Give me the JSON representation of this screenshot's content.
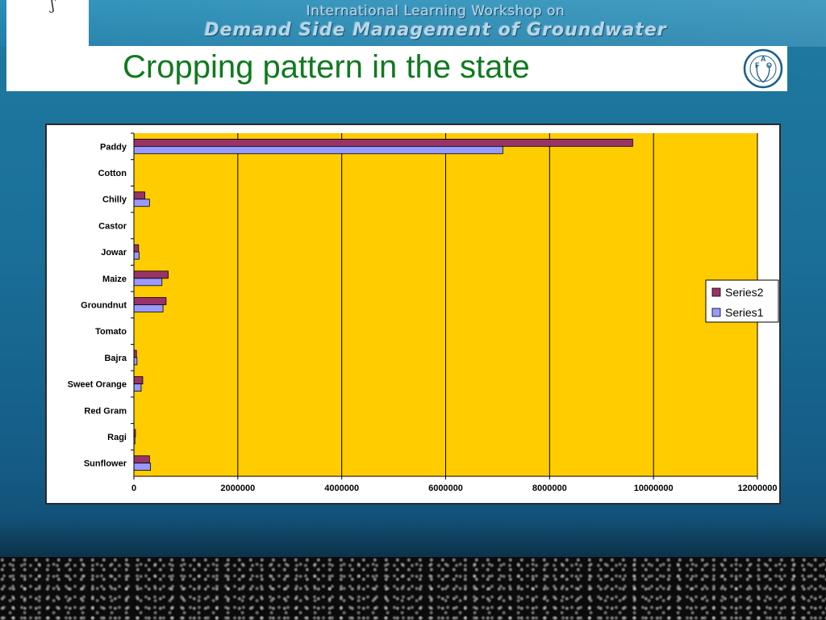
{
  "header": {
    "workshop_line1": "International Learning Workshop on",
    "workshop_line2": "Demand Side Management of Groundwater",
    "title": "Cropping pattern in the state",
    "logo_letters": [
      "F",
      "A",
      "O"
    ],
    "logo_motto": "FIAT PANIS"
  },
  "colors": {
    "plot_bg": "#FFCC00",
    "series2": "#993366",
    "series1": "#9999FF",
    "title_green": "#0F7A1F"
  },
  "chart_data": {
    "type": "bar",
    "orientation": "horizontal",
    "categories": [
      "Paddy",
      "Cotton",
      "Chilly",
      "Castor",
      "Jowar",
      "Maize",
      "Groundnut",
      "Tomato",
      "Bajra",
      "Sweet Orange",
      "Red Gram",
      "Ragi",
      "Sunflower"
    ],
    "series": [
      {
        "name": "Series2",
        "values": [
          9600000,
          0,
          210000,
          0,
          90000,
          660000,
          620000,
          0,
          50000,
          170000,
          0,
          30000,
          300000
        ]
      },
      {
        "name": "Series1",
        "values": [
          7100000,
          0,
          300000,
          0,
          100000,
          540000,
          560000,
          0,
          60000,
          140000,
          0,
          20000,
          320000
        ]
      }
    ],
    "xlim": [
      0,
      12000000
    ],
    "xticks": [
      0,
      2000000,
      4000000,
      6000000,
      8000000,
      10000000,
      12000000
    ],
    "xtick_labels": [
      "0",
      "2000000",
      "4000000",
      "6000000",
      "8000000",
      "10000000",
      "12000000"
    ],
    "grid": "vertical",
    "legend_position": "right",
    "legend": [
      "Series2",
      "Series1"
    ]
  }
}
